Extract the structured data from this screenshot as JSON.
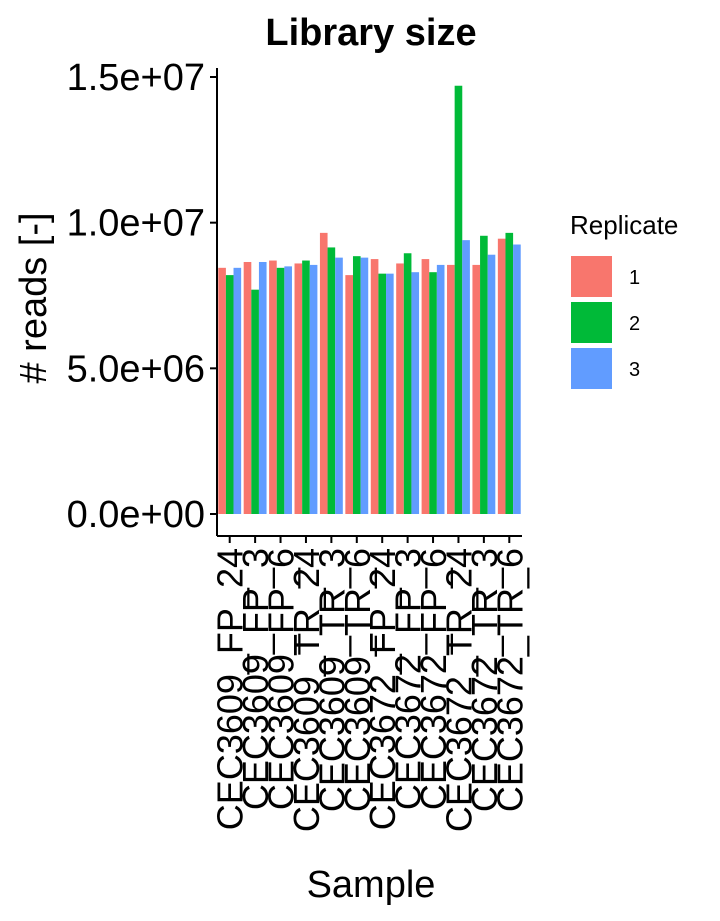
{
  "chart_data": {
    "type": "bar",
    "title": "Library size",
    "xlabel": "Sample",
    "ylabel": "# reads [-]",
    "ylim": [
      0,
      15000000
    ],
    "yticks": [
      0,
      5000000,
      10000000,
      15000000
    ],
    "ytick_labels": [
      "0.0e+00",
      "5.0e+06",
      "1.0e+07",
      "1.5e+07"
    ],
    "grid": false,
    "legend_position": "right",
    "legend_title": "Replicate",
    "categories": [
      "CEC3609_FP_24",
      "CEC3609_FP_3",
      "CEC3609_FP_6",
      "CEC3609_TR_24",
      "CEC3609_TR_3",
      "CEC3609_TR_6",
      "CEC3672_FP_24",
      "CEC3672_FP_3",
      "CEC3672_FP_6",
      "CEC3672_TR_24",
      "CEC3672_TR_3",
      "CEC3672_TR_6"
    ],
    "series": [
      {
        "name": "1",
        "color": "#F8766D",
        "values": [
          8450000,
          8650000,
          8700000,
          8600000,
          9650000,
          8200000,
          8750000,
          8600000,
          8750000,
          8550000,
          8550000,
          9450000
        ]
      },
      {
        "name": "2",
        "color": "#00BA38",
        "values": [
          8200000,
          7700000,
          8450000,
          8700000,
          9150000,
          8850000,
          8250000,
          8950000,
          8300000,
          14700000,
          9550000,
          9650000
        ]
      },
      {
        "name": "3",
        "color": "#619CFF",
        "values": [
          8450000,
          8650000,
          8500000,
          8550000,
          8800000,
          8800000,
          8250000,
          8300000,
          8550000,
          9400000,
          8900000,
          9250000
        ]
      }
    ]
  }
}
